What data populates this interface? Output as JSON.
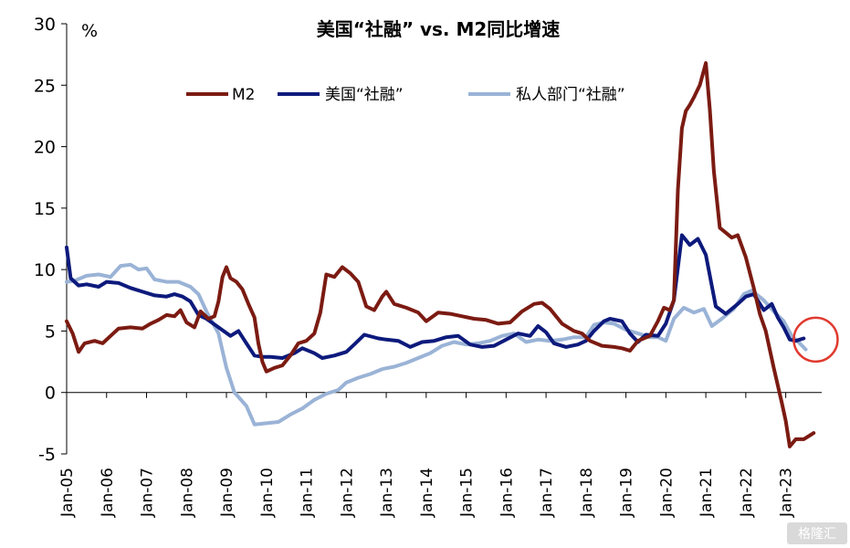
{
  "chart_data": {
    "type": "line",
    "title": "美国“社融” vs. M2同比增速",
    "ylabel": "%",
    "ylim": [
      -5,
      30
    ],
    "yticks": [
      -5,
      0,
      5,
      10,
      15,
      20,
      25,
      30
    ],
    "xlim": [
      2005.0,
      2023.9
    ],
    "xticks": [
      {
        "label": "Jan-05",
        "x": 2005
      },
      {
        "label": "Jan-06",
        "x": 2006
      },
      {
        "label": "Jan-07",
        "x": 2007
      },
      {
        "label": "Jan-08",
        "x": 2008
      },
      {
        "label": "Jan-09",
        "x": 2009
      },
      {
        "label": "Jan-10",
        "x": 2010
      },
      {
        "label": "Jan-11",
        "x": 2011
      },
      {
        "label": "Jan-12",
        "x": 2012
      },
      {
        "label": "Jan-13",
        "x": 2013
      },
      {
        "label": "Jan-14",
        "x": 2014
      },
      {
        "label": "Jan-15",
        "x": 2015
      },
      {
        "label": "Jan-16",
        "x": 2016
      },
      {
        "label": "Jan-17",
        "x": 2017
      },
      {
        "label": "Jan-18",
        "x": 2018
      },
      {
        "label": "Jan-19",
        "x": 2019
      },
      {
        "label": "Jan-20",
        "x": 2020
      },
      {
        "label": "Jan-21",
        "x": 2021
      },
      {
        "label": "Jan-22",
        "x": 2022
      },
      {
        "label": "Jan-23",
        "x": 2023
      }
    ],
    "grid": false,
    "legend_position": "top",
    "series": [
      {
        "name": "M2",
        "color": "#7b1b12",
        "points": [
          [
            2005.0,
            5.8
          ],
          [
            2005.15,
            4.8
          ],
          [
            2005.3,
            3.3
          ],
          [
            2005.45,
            4.0
          ],
          [
            2005.7,
            4.2
          ],
          [
            2005.9,
            4.0
          ],
          [
            2006.1,
            4.6
          ],
          [
            2006.3,
            5.2
          ],
          [
            2006.6,
            5.3
          ],
          [
            2006.9,
            5.2
          ],
          [
            2007.1,
            5.6
          ],
          [
            2007.3,
            5.9
          ],
          [
            2007.5,
            6.3
          ],
          [
            2007.7,
            6.2
          ],
          [
            2007.85,
            6.7
          ],
          [
            2008.0,
            5.7
          ],
          [
            2008.2,
            5.3
          ],
          [
            2008.35,
            6.6
          ],
          [
            2008.55,
            6.0
          ],
          [
            2008.7,
            6.2
          ],
          [
            2008.8,
            7.4
          ],
          [
            2008.9,
            9.4
          ],
          [
            2009.0,
            10.2
          ],
          [
            2009.1,
            9.3
          ],
          [
            2009.25,
            9.0
          ],
          [
            2009.4,
            8.4
          ],
          [
            2009.55,
            7.2
          ],
          [
            2009.7,
            6.1
          ],
          [
            2009.8,
            4.0
          ],
          [
            2009.9,
            2.5
          ],
          [
            2010.0,
            1.7
          ],
          [
            2010.2,
            2.0
          ],
          [
            2010.4,
            2.2
          ],
          [
            2010.6,
            3.0
          ],
          [
            2010.8,
            4.0
          ],
          [
            2011.0,
            4.2
          ],
          [
            2011.2,
            4.8
          ],
          [
            2011.35,
            6.5
          ],
          [
            2011.5,
            9.6
          ],
          [
            2011.7,
            9.4
          ],
          [
            2011.9,
            10.2
          ],
          [
            2012.1,
            9.7
          ],
          [
            2012.3,
            9.0
          ],
          [
            2012.5,
            7.0
          ],
          [
            2012.7,
            6.7
          ],
          [
            2012.9,
            7.8
          ],
          [
            2013.0,
            8.2
          ],
          [
            2013.2,
            7.2
          ],
          [
            2013.5,
            6.9
          ],
          [
            2013.8,
            6.5
          ],
          [
            2014.0,
            5.8
          ],
          [
            2014.3,
            6.5
          ],
          [
            2014.6,
            6.4
          ],
          [
            2014.9,
            6.2
          ],
          [
            2015.2,
            6.0
          ],
          [
            2015.5,
            5.9
          ],
          [
            2015.8,
            5.6
          ],
          [
            2016.1,
            5.7
          ],
          [
            2016.4,
            6.6
          ],
          [
            2016.7,
            7.2
          ],
          [
            2016.9,
            7.3
          ],
          [
            2017.1,
            6.8
          ],
          [
            2017.4,
            5.6
          ],
          [
            2017.7,
            5.0
          ],
          [
            2017.9,
            4.8
          ],
          [
            2018.1,
            4.2
          ],
          [
            2018.4,
            3.8
          ],
          [
            2018.7,
            3.7
          ],
          [
            2018.9,
            3.6
          ],
          [
            2019.1,
            3.4
          ],
          [
            2019.3,
            4.2
          ],
          [
            2019.6,
            4.6
          ],
          [
            2019.8,
            5.8
          ],
          [
            2019.95,
            6.9
          ],
          [
            2020.1,
            6.7
          ],
          [
            2020.2,
            7.5
          ],
          [
            2020.3,
            16.5
          ],
          [
            2020.4,
            21.5
          ],
          [
            2020.5,
            22.9
          ],
          [
            2020.6,
            23.4
          ],
          [
            2020.7,
            24.0
          ],
          [
            2020.85,
            25.0
          ],
          [
            2021.0,
            26.8
          ],
          [
            2021.1,
            23.0
          ],
          [
            2021.2,
            18.0
          ],
          [
            2021.35,
            13.4
          ],
          [
            2021.5,
            13.0
          ],
          [
            2021.65,
            12.6
          ],
          [
            2021.8,
            12.8
          ],
          [
            2022.0,
            11.0
          ],
          [
            2022.2,
            8.5
          ],
          [
            2022.35,
            6.4
          ],
          [
            2022.5,
            5.0
          ],
          [
            2022.7,
            2.0
          ],
          [
            2022.9,
            -0.8
          ],
          [
            2023.0,
            -2.3
          ],
          [
            2023.1,
            -4.4
          ],
          [
            2023.25,
            -3.8
          ],
          [
            2023.45,
            -3.8
          ],
          [
            2023.7,
            -3.3
          ]
        ]
      },
      {
        "name": "美国“社融”",
        "color": "#0d1a7c",
        "points": [
          [
            2005.0,
            11.8
          ],
          [
            2005.1,
            9.3
          ],
          [
            2005.3,
            8.7
          ],
          [
            2005.5,
            8.8
          ],
          [
            2005.8,
            8.6
          ],
          [
            2006.0,
            9.0
          ],
          [
            2006.3,
            8.9
          ],
          [
            2006.6,
            8.5
          ],
          [
            2006.9,
            8.2
          ],
          [
            2007.2,
            7.9
          ],
          [
            2007.5,
            7.8
          ],
          [
            2007.7,
            8.0
          ],
          [
            2007.9,
            7.8
          ],
          [
            2008.1,
            7.4
          ],
          [
            2008.3,
            6.3
          ],
          [
            2008.5,
            6.0
          ],
          [
            2008.8,
            5.3
          ],
          [
            2009.1,
            4.6
          ],
          [
            2009.3,
            5.0
          ],
          [
            2009.5,
            4.0
          ],
          [
            2009.7,
            3.0
          ],
          [
            2009.9,
            2.9
          ],
          [
            2010.1,
            2.9
          ],
          [
            2010.4,
            2.8
          ],
          [
            2010.7,
            3.2
          ],
          [
            2010.9,
            3.6
          ],
          [
            2011.2,
            3.2
          ],
          [
            2011.4,
            2.8
          ],
          [
            2011.7,
            3.0
          ],
          [
            2012.0,
            3.3
          ],
          [
            2012.2,
            3.9
          ],
          [
            2012.45,
            4.7
          ],
          [
            2012.8,
            4.4
          ],
          [
            2013.0,
            4.3
          ],
          [
            2013.3,
            4.2
          ],
          [
            2013.6,
            3.7
          ],
          [
            2013.9,
            4.1
          ],
          [
            2014.2,
            4.2
          ],
          [
            2014.5,
            4.5
          ],
          [
            2014.8,
            4.6
          ],
          [
            2015.1,
            3.9
          ],
          [
            2015.4,
            3.7
          ],
          [
            2015.7,
            3.8
          ],
          [
            2016.0,
            4.3
          ],
          [
            2016.3,
            4.8
          ],
          [
            2016.6,
            4.6
          ],
          [
            2016.8,
            5.4
          ],
          [
            2017.0,
            4.9
          ],
          [
            2017.2,
            4.0
          ],
          [
            2017.5,
            3.7
          ],
          [
            2017.8,
            3.9
          ],
          [
            2018.0,
            4.2
          ],
          [
            2018.2,
            5.0
          ],
          [
            2018.45,
            5.8
          ],
          [
            2018.6,
            6.0
          ],
          [
            2018.9,
            5.8
          ],
          [
            2019.1,
            4.8
          ],
          [
            2019.3,
            4.1
          ],
          [
            2019.5,
            4.7
          ],
          [
            2019.8,
            4.6
          ],
          [
            2020.0,
            5.6
          ],
          [
            2020.2,
            7.5
          ],
          [
            2020.4,
            12.8
          ],
          [
            2020.6,
            12.0
          ],
          [
            2020.8,
            12.5
          ],
          [
            2021.0,
            11.2
          ],
          [
            2021.25,
            7.0
          ],
          [
            2021.5,
            6.4
          ],
          [
            2021.8,
            7.2
          ],
          [
            2022.0,
            7.8
          ],
          [
            2022.2,
            8.0
          ],
          [
            2022.45,
            6.7
          ],
          [
            2022.65,
            7.2
          ],
          [
            2022.8,
            6.1
          ],
          [
            2022.95,
            5.3
          ],
          [
            2023.1,
            4.3
          ],
          [
            2023.25,
            4.2
          ],
          [
            2023.45,
            4.4
          ]
        ]
      },
      {
        "name": "私人部门“社融”",
        "color": "#9ab3d6",
        "points": [
          [
            2005.0,
            9.0
          ],
          [
            2005.2,
            9.1
          ],
          [
            2005.5,
            9.5
          ],
          [
            2005.8,
            9.6
          ],
          [
            2006.1,
            9.4
          ],
          [
            2006.35,
            10.3
          ],
          [
            2006.6,
            10.4
          ],
          [
            2006.8,
            10.0
          ],
          [
            2007.0,
            10.1
          ],
          [
            2007.2,
            9.2
          ],
          [
            2007.5,
            9.0
          ],
          [
            2007.8,
            9.0
          ],
          [
            2008.1,
            8.6
          ],
          [
            2008.3,
            8.0
          ],
          [
            2008.5,
            6.6
          ],
          [
            2008.8,
            4.8
          ],
          [
            2009.0,
            2.0
          ],
          [
            2009.2,
            0.0
          ],
          [
            2009.5,
            -1.1
          ],
          [
            2009.7,
            -2.6
          ],
          [
            2010.0,
            -2.5
          ],
          [
            2010.3,
            -2.4
          ],
          [
            2010.6,
            -1.8
          ],
          [
            2010.9,
            -1.3
          ],
          [
            2011.2,
            -0.6
          ],
          [
            2011.5,
            -0.1
          ],
          [
            2011.8,
            0.2
          ],
          [
            2012.0,
            0.8
          ],
          [
            2012.3,
            1.2
          ],
          [
            2012.6,
            1.5
          ],
          [
            2012.9,
            1.9
          ],
          [
            2013.2,
            2.1
          ],
          [
            2013.5,
            2.4
          ],
          [
            2013.8,
            2.8
          ],
          [
            2014.1,
            3.2
          ],
          [
            2014.4,
            3.8
          ],
          [
            2014.7,
            4.1
          ],
          [
            2015.0,
            3.9
          ],
          [
            2015.3,
            4.0
          ],
          [
            2015.6,
            4.2
          ],
          [
            2015.9,
            4.6
          ],
          [
            2016.2,
            4.8
          ],
          [
            2016.5,
            4.1
          ],
          [
            2016.8,
            4.3
          ],
          [
            2017.1,
            4.2
          ],
          [
            2017.4,
            4.3
          ],
          [
            2017.7,
            4.5
          ],
          [
            2018.0,
            4.5
          ],
          [
            2018.2,
            5.5
          ],
          [
            2018.45,
            5.7
          ],
          [
            2018.7,
            5.6
          ],
          [
            2019.0,
            5.1
          ],
          [
            2019.3,
            4.8
          ],
          [
            2019.6,
            4.5
          ],
          [
            2019.8,
            4.5
          ],
          [
            2020.0,
            4.2
          ],
          [
            2020.2,
            6.0
          ],
          [
            2020.45,
            6.9
          ],
          [
            2020.7,
            6.5
          ],
          [
            2020.95,
            6.8
          ],
          [
            2021.15,
            5.4
          ],
          [
            2021.4,
            6.0
          ],
          [
            2021.7,
            6.8
          ],
          [
            2021.95,
            8.0
          ],
          [
            2022.15,
            8.3
          ],
          [
            2022.45,
            7.5
          ],
          [
            2022.7,
            6.6
          ],
          [
            2022.95,
            5.8
          ],
          [
            2023.15,
            4.6
          ],
          [
            2023.35,
            4.0
          ],
          [
            2023.5,
            3.5
          ]
        ]
      }
    ],
    "annotations": [
      {
        "type": "circle",
        "color": "#e03a2f",
        "x": 2023.75,
        "y": 4.3
      }
    ]
  },
  "watermark": "格隆汇"
}
